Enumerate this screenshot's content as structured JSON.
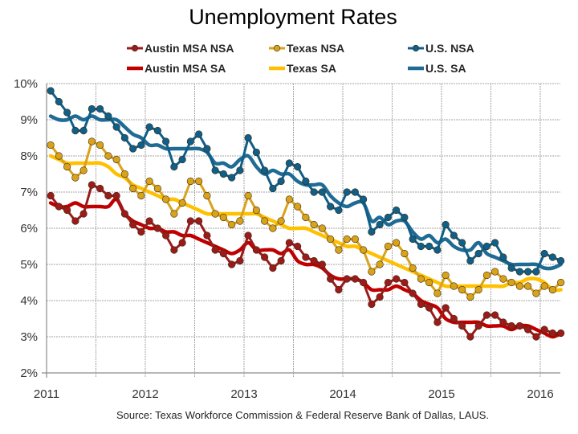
{
  "chart_data": {
    "type": "line",
    "title": "Unemployment Rates",
    "xlabel": "",
    "ylabel": "",
    "source": "Source:  Texas Workforce Commission & Federal Reserve Bank of Dallas, LAUS.",
    "x_start": "2011-01",
    "x_frequency": "monthly",
    "xlim": [
      2011,
      2016.25
    ],
    "ylim": [
      2,
      10
    ],
    "y_ticks": [
      "2%",
      "3%",
      "4%",
      "5%",
      "6%",
      "7%",
      "8%",
      "9%",
      "10%"
    ],
    "y_tick_values": [
      2,
      3,
      4,
      5,
      6,
      7,
      8,
      9,
      10
    ],
    "x_ticks": [
      "2011",
      "2012",
      "2013",
      "2014",
      "2015",
      "2016"
    ],
    "x_tick_values": [
      2011,
      2012,
      2013,
      2014,
      2015,
      2016
    ],
    "grid": true,
    "legend_position": "top",
    "series": [
      {
        "name": "Austin MSA NSA",
        "color": "#9b1b1b",
        "style": "line-markers",
        "values": [
          6.9,
          6.6,
          6.5,
          6.2,
          6.4,
          7.2,
          7.1,
          6.9,
          6.9,
          6.4,
          6.1,
          5.9,
          6.2,
          6.0,
          5.8,
          5.4,
          5.6,
          6.2,
          6.2,
          5.8,
          5.4,
          5.3,
          5.0,
          5.1,
          5.8,
          5.4,
          5.2,
          4.9,
          5.1,
          5.6,
          5.5,
          5.2,
          5.1,
          5.0,
          4.6,
          4.3,
          4.6,
          4.6,
          4.5,
          3.9,
          4.1,
          4.5,
          4.6,
          4.5,
          4.2,
          3.9,
          3.8,
          3.4,
          3.8,
          3.5,
          3.3,
          3.0,
          3.3,
          3.6,
          3.6,
          3.4,
          3.3,
          3.3,
          3.2,
          3.0,
          3.2,
          3.1,
          3.1
        ]
      },
      {
        "name": "Texas NSA",
        "color": "#d9a21b",
        "style": "line-markers",
        "values": [
          8.3,
          8.0,
          7.7,
          7.4,
          7.6,
          8.4,
          8.3,
          8.0,
          7.9,
          7.5,
          7.1,
          6.9,
          7.3,
          7.1,
          6.8,
          6.4,
          6.7,
          7.3,
          7.3,
          6.9,
          6.4,
          6.3,
          6.1,
          6.2,
          6.9,
          6.5,
          6.2,
          6.0,
          6.2,
          6.8,
          6.6,
          6.3,
          6.1,
          6.0,
          5.7,
          5.4,
          5.7,
          5.7,
          5.4,
          4.8,
          5.0,
          5.5,
          5.6,
          5.3,
          4.9,
          4.6,
          4.5,
          4.2,
          4.7,
          4.4,
          4.3,
          4.1,
          4.3,
          4.7,
          4.8,
          4.6,
          4.5,
          4.4,
          4.4,
          4.2,
          4.4,
          4.3,
          4.5
        ]
      },
      {
        "name": "U.S. NSA",
        "color": "#0f5f88",
        "style": "line-markers",
        "values": [
          9.8,
          9.5,
          9.2,
          8.7,
          8.7,
          9.3,
          9.3,
          9.1,
          8.8,
          8.5,
          8.2,
          8.3,
          8.8,
          8.7,
          8.4,
          7.7,
          7.9,
          8.4,
          8.6,
          8.2,
          7.6,
          7.5,
          7.4,
          7.6,
          8.5,
          8.1,
          7.6,
          7.1,
          7.3,
          7.8,
          7.7,
          7.3,
          7.0,
          7.0,
          6.6,
          6.5,
          7.0,
          7.0,
          6.8,
          5.9,
          6.1,
          6.3,
          6.5,
          6.3,
          5.7,
          5.5,
          5.5,
          5.4,
          6.1,
          5.8,
          5.6,
          5.1,
          5.3,
          5.5,
          5.6,
          5.2,
          4.9,
          4.8,
          4.8,
          4.8,
          5.3,
          5.2,
          5.1
        ]
      },
      {
        "name": "Austin MSA SA",
        "color": "#c00000",
        "style": "line",
        "values": [
          6.7,
          6.6,
          6.6,
          6.7,
          6.6,
          6.6,
          6.6,
          6.6,
          6.8,
          6.4,
          6.2,
          6.1,
          6.0,
          6.0,
          5.9,
          5.9,
          5.8,
          5.8,
          5.7,
          5.6,
          5.5,
          5.4,
          5.3,
          5.4,
          5.6,
          5.4,
          5.4,
          5.4,
          5.3,
          5.4,
          5.1,
          5.0,
          5.0,
          4.9,
          4.7,
          4.6,
          4.6,
          4.6,
          4.5,
          4.3,
          4.3,
          4.3,
          4.4,
          4.3,
          4.2,
          4.0,
          3.9,
          3.8,
          3.5,
          3.4,
          3.4,
          3.4,
          3.4,
          3.3,
          3.3,
          3.3,
          3.2,
          3.3,
          3.3,
          3.2,
          3.1,
          3.0,
          3.1
        ]
      },
      {
        "name": "Texas SA",
        "color": "#ffc000",
        "style": "line",
        "values": [
          8.0,
          7.9,
          7.8,
          7.8,
          7.8,
          7.8,
          7.8,
          7.7,
          7.5,
          7.4,
          7.2,
          7.1,
          7.0,
          6.9,
          6.8,
          6.8,
          6.7,
          6.6,
          6.5,
          6.4,
          6.4,
          6.4,
          6.4,
          6.4,
          6.4,
          6.4,
          6.3,
          6.2,
          6.1,
          6.0,
          6.0,
          6.0,
          5.9,
          5.8,
          5.7,
          5.6,
          5.5,
          5.5,
          5.4,
          5.3,
          5.2,
          5.1,
          5.0,
          4.9,
          4.8,
          4.7,
          4.6,
          4.5,
          4.4,
          4.4,
          4.4,
          4.4,
          4.4,
          4.4,
          4.4,
          4.4,
          4.5,
          4.5,
          4.6,
          4.6,
          4.5,
          4.3,
          4.3
        ]
      },
      {
        "name": "U.S. SA",
        "color": "#1f6b94",
        "style": "line",
        "values": [
          9.1,
          9.0,
          9.0,
          9.1,
          9.0,
          9.1,
          9.0,
          9.0,
          9.0,
          8.8,
          8.6,
          8.5,
          8.3,
          8.3,
          8.2,
          8.2,
          8.2,
          8.2,
          8.2,
          8.1,
          7.8,
          7.8,
          7.7,
          7.9,
          8.0,
          7.7,
          7.5,
          7.6,
          7.5,
          7.5,
          7.3,
          7.2,
          7.2,
          7.2,
          6.9,
          6.7,
          6.6,
          6.7,
          6.7,
          6.2,
          6.3,
          6.1,
          6.2,
          6.2,
          5.9,
          5.7,
          5.8,
          5.6,
          5.7,
          5.5,
          5.4,
          5.4,
          5.6,
          5.3,
          5.2,
          5.1,
          5.0,
          5.0,
          5.0,
          5.0,
          4.9,
          4.9,
          5.0
        ]
      }
    ]
  }
}
